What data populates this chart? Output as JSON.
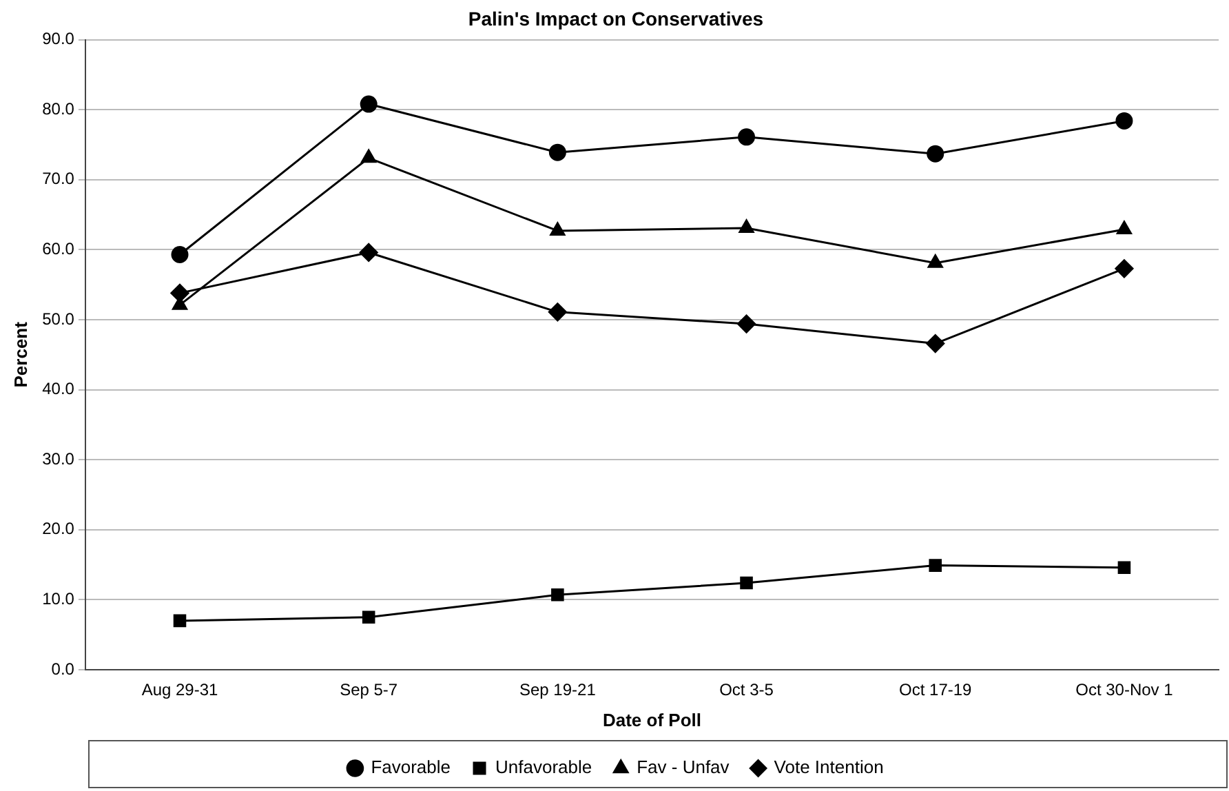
{
  "chart_data": {
    "type": "line",
    "title": "Palin's Impact on Conservatives",
    "xlabel": "Date of Poll",
    "ylabel": "Percent",
    "categories": [
      "Aug 29-31",
      "Sep 5-7",
      "Sep 19-21",
      "Oct 3-5",
      "Oct 17-19",
      "Oct 30-Nov 1"
    ],
    "series": [
      {
        "name": "Favorable",
        "color": "#000000",
        "marker": "circle",
        "values": [
          59.3,
          80.8,
          73.9,
          76.1,
          73.7,
          78.4
        ]
      },
      {
        "name": "Unfavorable",
        "color": "#000000",
        "marker": "square",
        "values": [
          7.0,
          7.5,
          10.7,
          12.4,
          14.9,
          14.6
        ]
      },
      {
        "name": "Fav - Unfav",
        "color": "#000000",
        "marker": "triangle",
        "values": [
          52.1,
          73.1,
          62.7,
          63.1,
          58.1,
          62.9
        ]
      },
      {
        "name": "Vote Intention",
        "color": "#000000",
        "marker": "diamond",
        "values": [
          53.8,
          59.6,
          51.1,
          49.4,
          46.6,
          57.3
        ]
      }
    ],
    "ylim": [
      0,
      90
    ],
    "yticks": [
      {
        "value": 0,
        "label": "0.0"
      },
      {
        "value": 10,
        "label": "10.0"
      },
      {
        "value": 20,
        "label": "20.0"
      },
      {
        "value": 30,
        "label": "30.0"
      },
      {
        "value": 40,
        "label": "40.0"
      },
      {
        "value": 50,
        "label": "50.0"
      },
      {
        "value": 60,
        "label": "60.0"
      },
      {
        "value": 70,
        "label": "70.0"
      },
      {
        "value": 80,
        "label": "80.0"
      },
      {
        "value": 90,
        "label": "90.0"
      }
    ],
    "grid": "y",
    "legend": "bottom"
  }
}
